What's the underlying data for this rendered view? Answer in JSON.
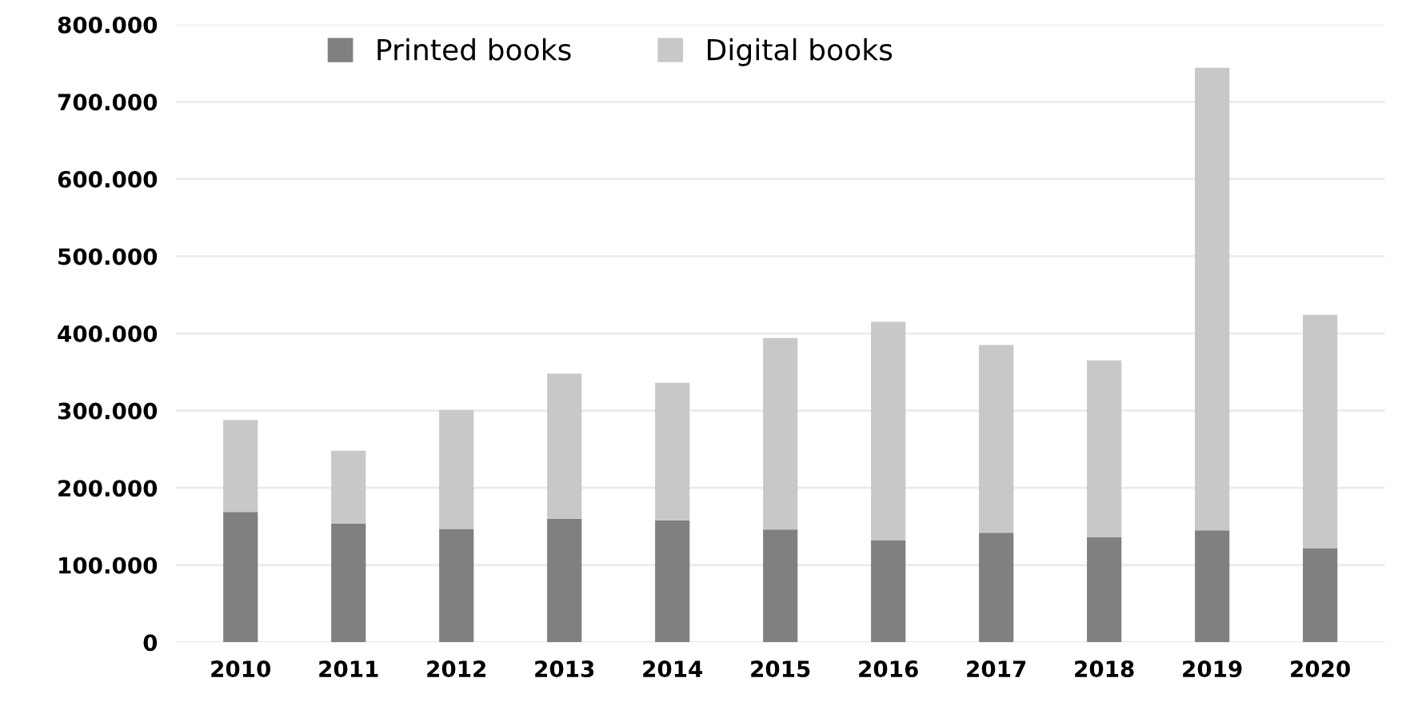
{
  "chart_data": {
    "type": "bar",
    "stacked": true,
    "categories": [
      "2010",
      "2011",
      "2012",
      "2013",
      "2014",
      "2015",
      "2016",
      "2017",
      "2018",
      "2019",
      "2020"
    ],
    "series": [
      {
        "name": "Printed books",
        "color": "#808080",
        "values": [
          169000,
          154000,
          147000,
          160000,
          158000,
          146000,
          132000,
          142000,
          136000,
          145000,
          122000
        ]
      },
      {
        "name": "Digital books",
        "color": "#c8c8c8",
        "values": [
          119000,
          94000,
          154000,
          188000,
          178000,
          248000,
          283000,
          243000,
          229000,
          599000,
          302000
        ]
      }
    ],
    "ylim": [
      0,
      800000
    ],
    "yticks": [
      0,
      {
        "value": 100000,
        "label": "100.000"
      },
      {
        "value": 200000,
        "label": "200.000"
      },
      {
        "value": 300000,
        "label": "300.000"
      },
      {
        "value": 400000,
        "label": "400.000"
      },
      {
        "value": 500000,
        "label": "500.000"
      },
      {
        "value": 600000,
        "label": "600.000"
      },
      {
        "value": 700000,
        "label": "700.000"
      },
      {
        "value": 800000,
        "label": "800.000"
      }
    ],
    "grid": "y",
    "legend": "top"
  }
}
